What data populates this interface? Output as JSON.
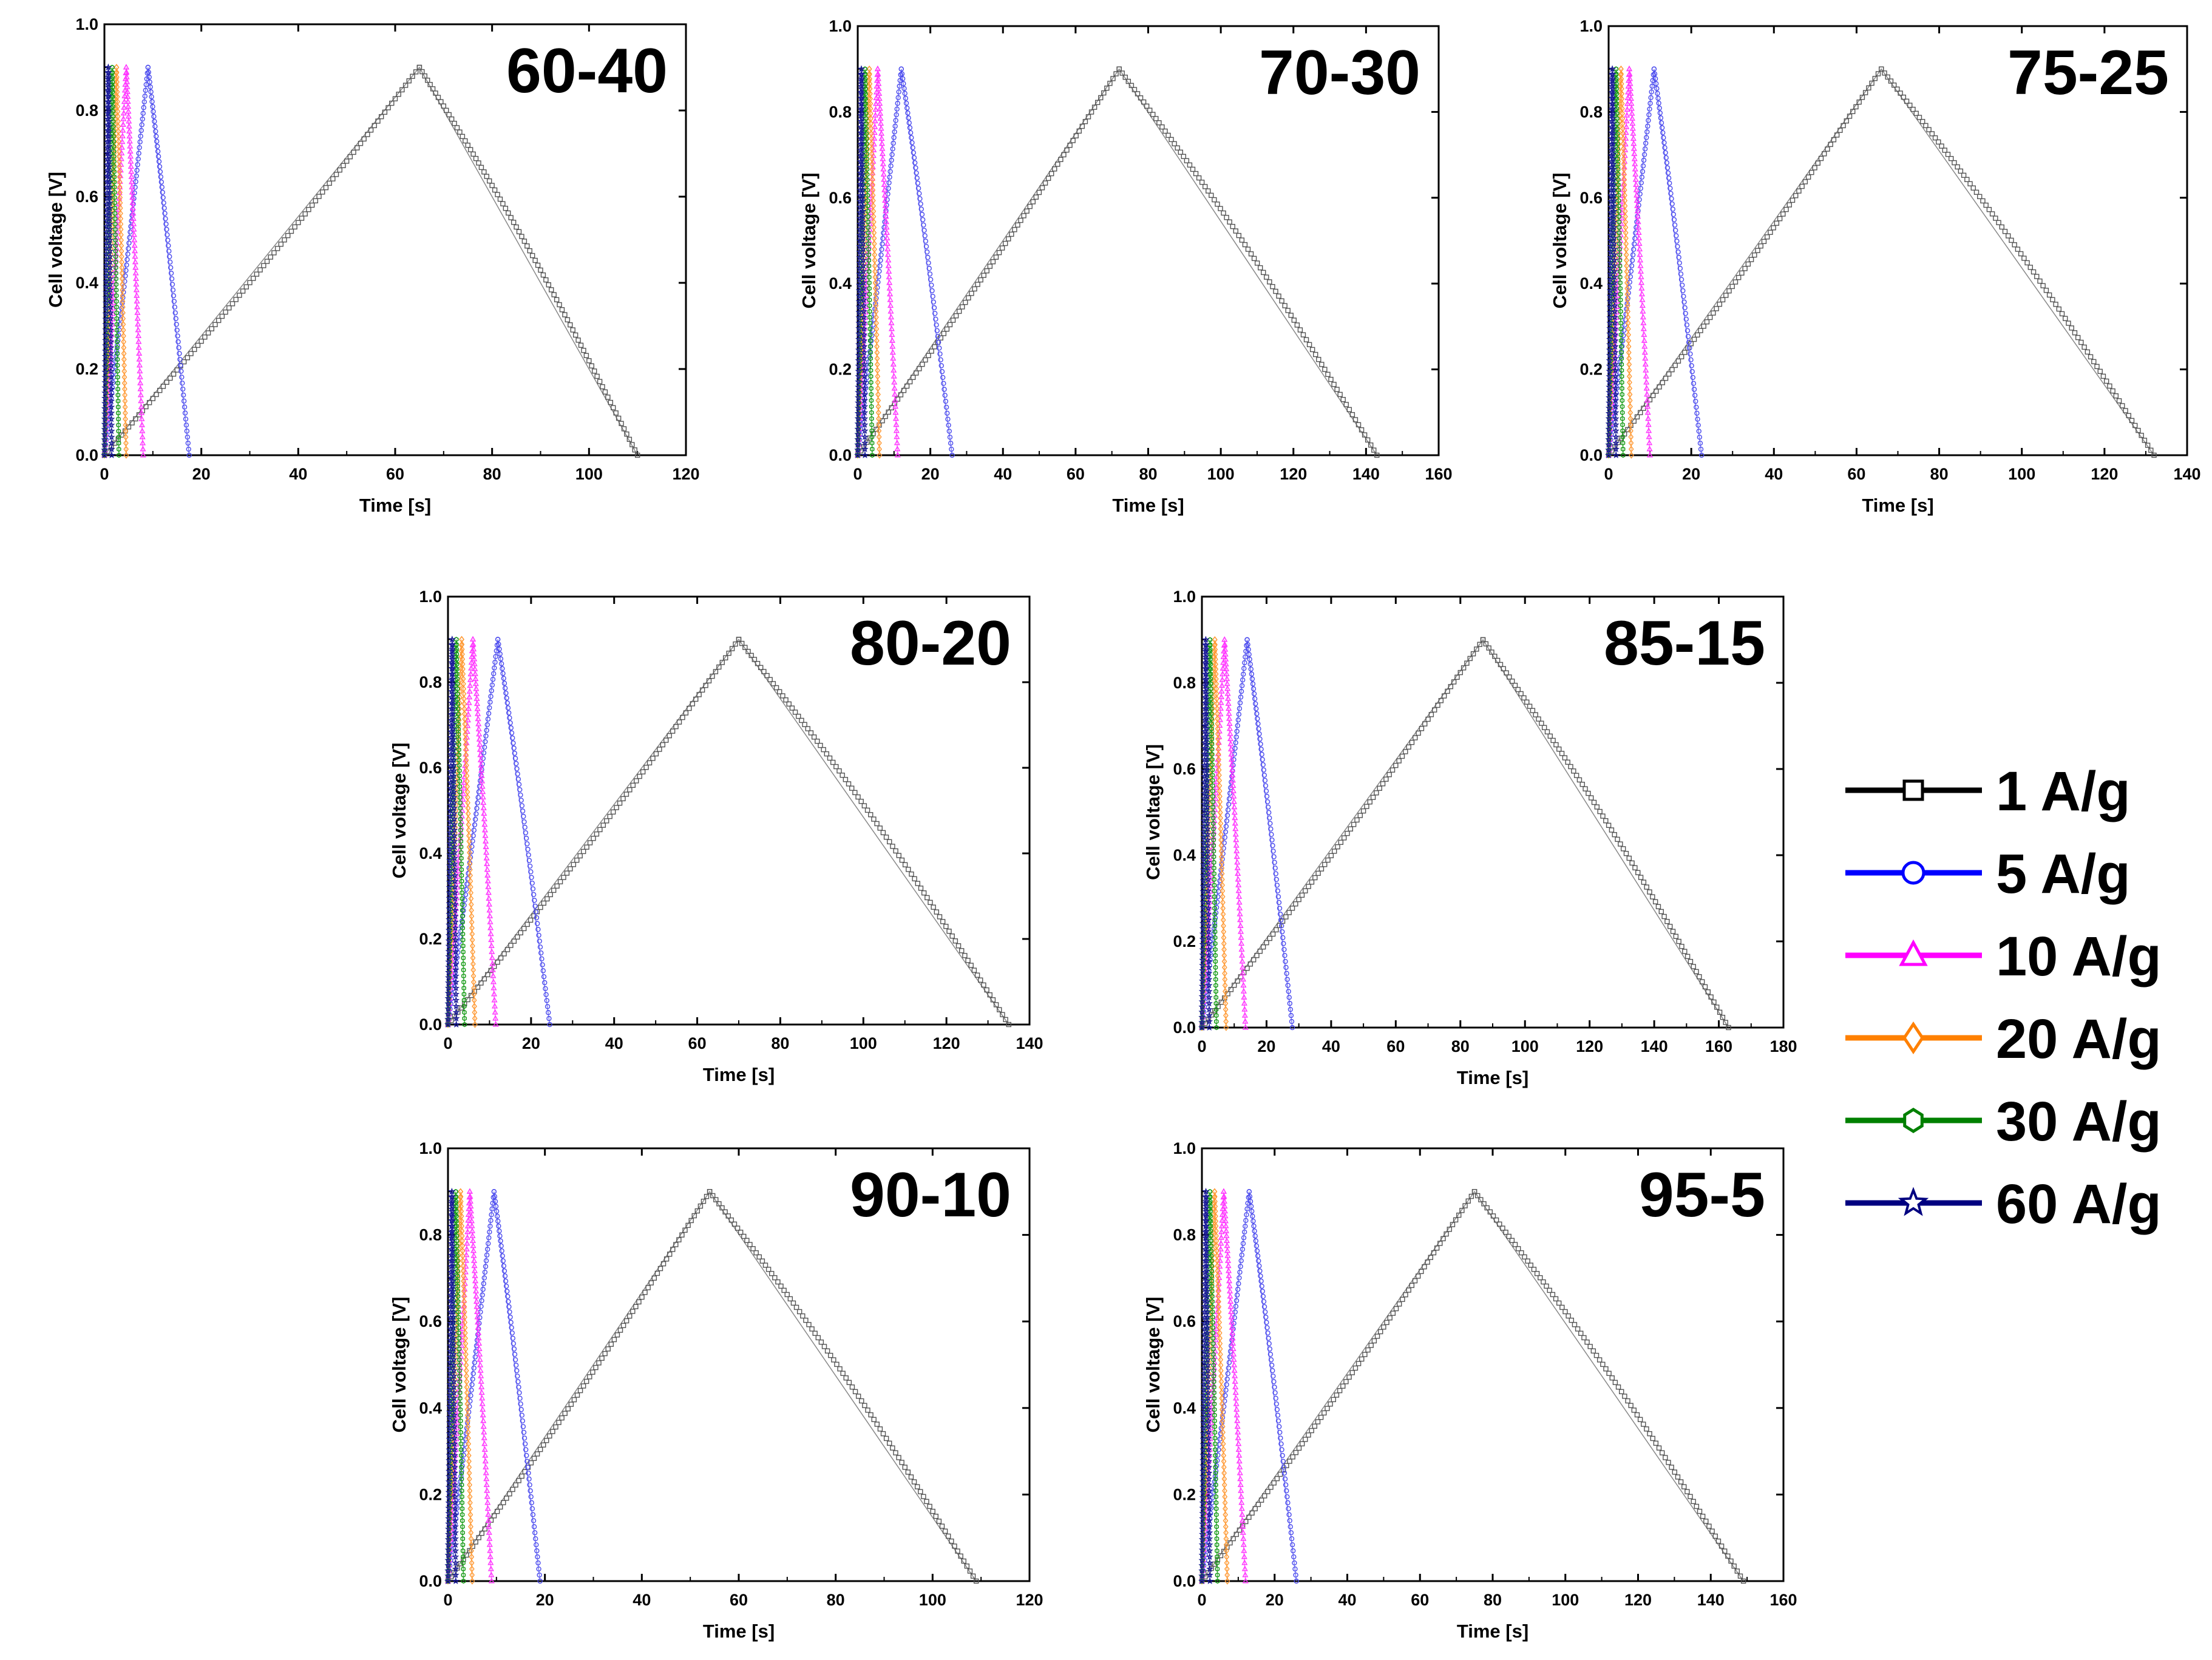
{
  "chart_data": {
    "type": "line",
    "series_meta": [
      {
        "name": "1 A/g",
        "marker": "square",
        "color": "#000000",
        "plot_color": "#555555"
      },
      {
        "name": "5 A/g",
        "marker": "circle",
        "color": "#0000ff",
        "plot_color": "#4a4aee"
      },
      {
        "name": "10 A/g",
        "marker": "triangle",
        "color": "#ff00ff",
        "plot_color": "#ff33ff"
      },
      {
        "name": "20 A/g",
        "marker": "diamond",
        "color": "#ff8000",
        "plot_color": "#ff9933"
      },
      {
        "name": "30 A/g",
        "marker": "hexagon",
        "color": "#008000",
        "plot_color": "#119911"
      },
      {
        "name": "60 A/g",
        "marker": "star",
        "color": "#000080",
        "plot_color": "#1a1a99"
      }
    ],
    "panels": [
      {
        "title": "60-40",
        "xlabel": "Time [s]",
        "ylabel": "Cell voltage [V]",
        "xlim": [
          0,
          120
        ],
        "xticks": [
          "0",
          "20",
          "40",
          "60",
          "80",
          "100",
          "120"
        ],
        "ylim": [
          0,
          1.0
        ],
        "yticks": [
          "0.0",
          "0.2",
          "0.4",
          "0.6",
          "0.8",
          "1.0"
        ],
        "peak_v": 0.9,
        "curves": [
          {
            "series": "1 A/g",
            "t_peak": 65,
            "t_end": 110
          },
          {
            "series": "5 A/g",
            "t_peak": 9,
            "t_end": 17.5
          },
          {
            "series": "10 A/g",
            "t_peak": 4.5,
            "t_end": 8
          },
          {
            "series": "20 A/g",
            "t_peak": 2.5,
            "t_end": 4.5
          },
          {
            "series": "30 A/g",
            "t_peak": 1.6,
            "t_end": 3
          },
          {
            "series": "60 A/g",
            "t_peak": 0.8,
            "t_end": 1.5
          }
        ]
      },
      {
        "title": "70-30",
        "xlabel": "Time [s]",
        "ylabel": "Cell voltage [V]",
        "xlim": [
          0,
          160
        ],
        "xticks": [
          "0",
          "20",
          "40",
          "60",
          "80",
          "100",
          "120",
          "140",
          "160"
        ],
        "ylim": [
          0,
          1.0
        ],
        "yticks": [
          "0.0",
          "0.2",
          "0.4",
          "0.6",
          "0.8",
          "1.0"
        ],
        "peak_v": 0.9,
        "curves": [
          {
            "series": "1 A/g",
            "t_peak": 72,
            "t_end": 143
          },
          {
            "series": "5 A/g",
            "t_peak": 12,
            "t_end": 26
          },
          {
            "series": "10 A/g",
            "t_peak": 5.5,
            "t_end": 11
          },
          {
            "series": "20 A/g",
            "t_peak": 3.2,
            "t_end": 6
          },
          {
            "series": "30 A/g",
            "t_peak": 2,
            "t_end": 4
          },
          {
            "series": "60 A/g",
            "t_peak": 1,
            "t_end": 2
          }
        ]
      },
      {
        "title": "75-25",
        "xlabel": "Time [s]",
        "ylabel": "Cell voltage [V]",
        "xlim": [
          0,
          140
        ],
        "xticks": [
          "0",
          "20",
          "40",
          "60",
          "80",
          "100",
          "120",
          "140"
        ],
        "ylim": [
          0,
          1.0
        ],
        "yticks": [
          "0.0",
          "0.2",
          "0.4",
          "0.6",
          "0.8",
          "1.0"
        ],
        "peak_v": 0.9,
        "curves": [
          {
            "series": "1 A/g",
            "t_peak": 66,
            "t_end": 132
          },
          {
            "series": "5 A/g",
            "t_peak": 11,
            "t_end": 22.5
          },
          {
            "series": "10 A/g",
            "t_peak": 5,
            "t_end": 10
          },
          {
            "series": "20 A/g",
            "t_peak": 3,
            "t_end": 5.5
          },
          {
            "series": "30 A/g",
            "t_peak": 1.8,
            "t_end": 3.5
          },
          {
            "series": "60 A/g",
            "t_peak": 0.9,
            "t_end": 1.8
          }
        ]
      },
      {
        "title": "80-20",
        "xlabel": "Time [s]",
        "ylabel": "Cell voltage [V]",
        "xlim": [
          0,
          140
        ],
        "xticks": [
          "0",
          "20",
          "40",
          "60",
          "80",
          "100",
          "120",
          "140"
        ],
        "ylim": [
          0,
          1.0
        ],
        "yticks": [
          "0.0",
          "0.2",
          "0.4",
          "0.6",
          "0.8",
          "1.0"
        ],
        "peak_v": 0.9,
        "curves": [
          {
            "series": "1 A/g",
            "t_peak": 70,
            "t_end": 135
          },
          {
            "series": "5 A/g",
            "t_peak": 12,
            "t_end": 24.5
          },
          {
            "series": "10 A/g",
            "t_peak": 6,
            "t_end": 11.5
          },
          {
            "series": "20 A/g",
            "t_peak": 3.3,
            "t_end": 6.5
          },
          {
            "series": "30 A/g",
            "t_peak": 2,
            "t_end": 4
          },
          {
            "series": "60 A/g",
            "t_peak": 1,
            "t_end": 2
          }
        ]
      },
      {
        "title": "85-15",
        "xlabel": "Time [s]",
        "ylabel": "Cell voltage [V]",
        "xlim": [
          0,
          180
        ],
        "xticks": [
          "0",
          "20",
          "40",
          "60",
          "80",
          "100",
          "120",
          "140",
          "160",
          "180"
        ],
        "ylim": [
          0,
          1.0
        ],
        "yticks": [
          "0.0",
          "0.2",
          "0.4",
          "0.6",
          "0.8",
          "1.0"
        ],
        "peak_v": 0.9,
        "curves": [
          {
            "series": "1 A/g",
            "t_peak": 87,
            "t_end": 163
          },
          {
            "series": "5 A/g",
            "t_peak": 14,
            "t_end": 28
          },
          {
            "series": "10 A/g",
            "t_peak": 7,
            "t_end": 13.5
          },
          {
            "series": "20 A/g",
            "t_peak": 4,
            "t_end": 7.5
          },
          {
            "series": "30 A/g",
            "t_peak": 2.5,
            "t_end": 4.5
          },
          {
            "series": "60 A/g",
            "t_peak": 1.2,
            "t_end": 2.3
          }
        ]
      },
      {
        "title": "90-10",
        "xlabel": "Time [s]",
        "ylabel": "Cell voltage [V]",
        "xlim": [
          0,
          120
        ],
        "xticks": [
          "0",
          "20",
          "40",
          "60",
          "80",
          "100",
          "120"
        ],
        "ylim": [
          0,
          1.0
        ],
        "yticks": [
          "0.0",
          "0.2",
          "0.4",
          "0.6",
          "0.8",
          "1.0"
        ],
        "peak_v": 0.9,
        "curves": [
          {
            "series": "1 A/g",
            "t_peak": 54,
            "t_end": 109
          },
          {
            "series": "5 A/g",
            "t_peak": 9.5,
            "t_end": 19
          },
          {
            "series": "10 A/g",
            "t_peak": 4.5,
            "t_end": 9
          },
          {
            "series": "20 A/g",
            "t_peak": 2.6,
            "t_end": 5
          },
          {
            "series": "30 A/g",
            "t_peak": 1.6,
            "t_end": 3.2
          },
          {
            "series": "60 A/g",
            "t_peak": 0.8,
            "t_end": 1.6
          }
        ]
      },
      {
        "title": "95-5",
        "xlabel": "Time [s]",
        "ylabel": "Cell voltage [V]",
        "xlim": [
          0,
          160
        ],
        "xticks": [
          "0",
          "20",
          "40",
          "60",
          "80",
          "100",
          "120",
          "140",
          "160"
        ],
        "ylim": [
          0,
          1.0
        ],
        "yticks": [
          "0.0",
          "0.2",
          "0.4",
          "0.6",
          "0.8",
          "1.0"
        ],
        "peak_v": 0.9,
        "curves": [
          {
            "series": "1 A/g",
            "t_peak": 75,
            "t_end": 149
          },
          {
            "series": "5 A/g",
            "t_peak": 13,
            "t_end": 26
          },
          {
            "series": "10 A/g",
            "t_peak": 6,
            "t_end": 12
          },
          {
            "series": "20 A/g",
            "t_peak": 3.5,
            "t_end": 7
          },
          {
            "series": "30 A/g",
            "t_peak": 2.2,
            "t_end": 4.3
          },
          {
            "series": "60 A/g",
            "t_peak": 1.1,
            "t_end": 2.2
          }
        ]
      }
    ],
    "legend": {
      "placement": "right",
      "entries": [
        "1 A/g",
        "5 A/g",
        "10 A/g",
        "20 A/g",
        "30 A/g",
        "60 A/g"
      ]
    }
  }
}
